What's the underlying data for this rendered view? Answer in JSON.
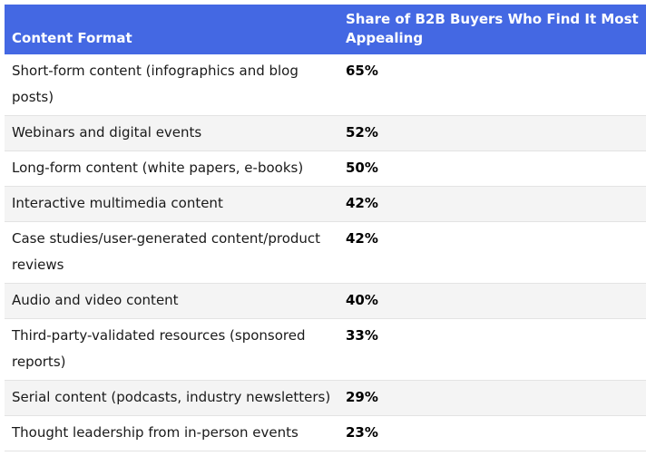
{
  "table": {
    "header": [
      "Content Format",
      "Share of B2B Buyers Who Find It Most Appealing"
    ],
    "rows": [
      [
        "Short-form content (infographics and blog posts)",
        "65%"
      ],
      [
        "Webinars and digital events",
        "52%"
      ],
      [
        "Long-form content (white papers, e-books)",
        "50%"
      ],
      [
        "Interactive multimedia content",
        "42%"
      ],
      [
        "Case studies/user-generated content/product reviews",
        "42%"
      ],
      [
        "Audio and video content",
        "40%"
      ],
      [
        "Third-party-validated resources (sponsored reports)",
        "33%"
      ],
      [
        "Serial content (podcasts, industry newsletters)",
        "29%"
      ],
      [
        "Thought leadership from in-person events",
        "23%"
      ]
    ]
  }
}
